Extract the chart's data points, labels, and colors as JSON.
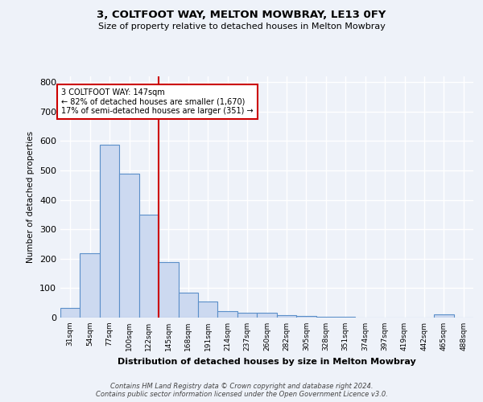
{
  "title1": "3, COLTFOOT WAY, MELTON MOWBRAY, LE13 0FY",
  "title2": "Size of property relative to detached houses in Melton Mowbray",
  "xlabel": "Distribution of detached houses by size in Melton Mowbray",
  "ylabel": "Number of detached properties",
  "bar_values": [
    33,
    218,
    588,
    490,
    349,
    188,
    84,
    55,
    21,
    17,
    16,
    8,
    6,
    4,
    2,
    0,
    0,
    0,
    0,
    10,
    0
  ],
  "bar_labels": [
    "31sqm",
    "54sqm",
    "77sqm",
    "100sqm",
    "122sqm",
    "145sqm",
    "168sqm",
    "191sqm",
    "214sqm",
    "237sqm",
    "260sqm",
    "282sqm",
    "305sqm",
    "328sqm",
    "351sqm",
    "374sqm",
    "397sqm",
    "419sqm",
    "442sqm",
    "465sqm",
    "488sqm"
  ],
  "bar_color": "#ccd9f0",
  "bar_edge_color": "#5b8fc9",
  "vline_x_idx": 5,
  "vline_color": "#cc0000",
  "annotation_text": "3 COLTFOOT WAY: 147sqm\n← 82% of detached houses are smaller (1,670)\n17% of semi-detached houses are larger (351) →",
  "annotation_box_color": "#ffffff",
  "annotation_box_edge": "#cc0000",
  "ylim": [
    0,
    820
  ],
  "yticks": [
    0,
    100,
    200,
    300,
    400,
    500,
    600,
    700,
    800
  ],
  "footer": "Contains HM Land Registry data © Crown copyright and database right 2024.\nContains public sector information licensed under the Open Government Licence v3.0.",
  "background_color": "#eef2f9",
  "plot_bg_color": "#eef2f9",
  "grid_color": "#ffffff"
}
